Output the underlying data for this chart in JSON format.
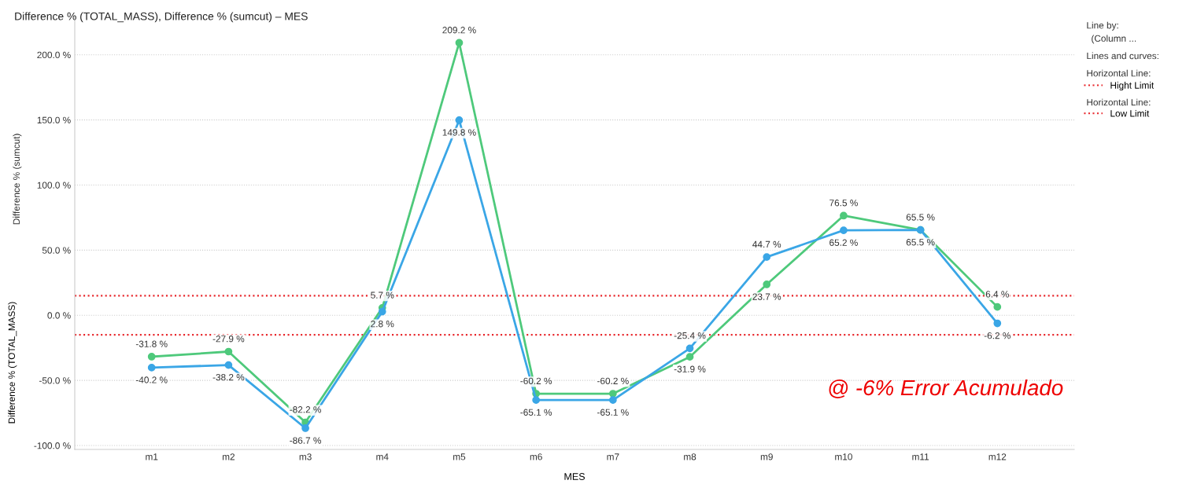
{
  "chart_data": {
    "type": "line",
    "title": "Difference % (TOTAL_MASS), Difference % (sumcut) – MES",
    "xlabel": "MES",
    "ylabel": "Difference % (TOTAL_MASS)",
    "categories": [
      "m1",
      "m2",
      "m3",
      "m4",
      "m5",
      "m6",
      "m7",
      "m8",
      "m9",
      "m10",
      "m11",
      "m12"
    ],
    "series": [
      {
        "color": "#4ec97b",
        "values": [
          -31.8,
          -27.9,
          -82.2,
          5.7,
          209.2,
          -60.2,
          -60.2,
          -31.9,
          23.7,
          76.5,
          65.5,
          6.4
        ],
        "value_labels": [
          "-31.8 %",
          "-27.9 %",
          "-82.2 %",
          "5.7 %",
          "209.2 %",
          "-60.2 %",
          "-60.2 %",
          "-31.9 %",
          "23.7 %",
          "76.5 %",
          "65.5 %",
          "6.4 %"
        ]
      },
      {
        "color": "#3aa6e6",
        "values": [
          -40.2,
          -38.2,
          -86.7,
          2.8,
          149.8,
          -65.1,
          -65.1,
          -25.4,
          44.7,
          65.2,
          65.5,
          -6.2
        ],
        "value_labels": [
          "-40.2 %",
          "-38.2 %",
          "-86.7 %",
          "2.8 %",
          "149.8 %",
          "-65.1 %",
          "-65.1 %",
          "-25.4 %",
          "44.7 %",
          "65.2 %",
          "65.5 %",
          "-6.2 %"
        ]
      }
    ],
    "ylim": [
      -103,
      230
    ],
    "yticks": [
      {
        "value": -100,
        "label": "-100.0 %"
      },
      {
        "value": -50,
        "label": "-50.0 %"
      },
      {
        "value": 0,
        "label": "0.0 %"
      },
      {
        "value": 50,
        "label": "50.0 %"
      },
      {
        "value": 100,
        "label": "100.0 %"
      },
      {
        "value": 150,
        "label": "150.0 %"
      },
      {
        "value": 200,
        "label": "200.0 %"
      }
    ],
    "ref_lines": [
      {
        "axis": "y",
        "value": 15,
        "label": "Hight Limit",
        "color": "#e8262b",
        "line_style": "dotted"
      },
      {
        "axis": "y",
        "value": -15,
        "label": "Low Limit",
        "color": "#e8262b",
        "line_style": "dotted"
      }
    ],
    "annotations": [
      "Difference % (sumcut)",
      "Line by:",
      "(Column ...",
      "Lines and curves:",
      "Horizontal Line:",
      "Horizontal Line:",
      "@ -6% Error Acumulado"
    ],
    "grid": "y",
    "marker": "circle",
    "line_style": "solid",
    "legend": "top right"
  }
}
